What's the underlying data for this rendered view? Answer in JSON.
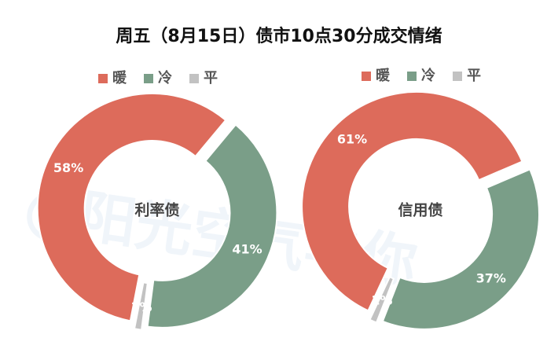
{
  "title": "周五（8月15日）债市10点30分成交情绪",
  "watermark": "@阳光空气与你",
  "chart_data": [
    {
      "type": "donut",
      "center_label": "利率债",
      "categories": [
        "暖",
        "冷",
        "平"
      ],
      "values": [
        58,
        41,
        1
      ],
      "value_labels": [
        "58%",
        "41%",
        "1%"
      ],
      "colors": [
        "#dd6b5b",
        "#7a9e88",
        "#c2c2c2"
      ]
    },
    {
      "type": "donut",
      "center_label": "信用债",
      "categories": [
        "暖",
        "冷",
        "平"
      ],
      "values": [
        61,
        37,
        1
      ],
      "value_labels": [
        "61%",
        "37%",
        "1%"
      ],
      "colors": [
        "#dd6b5b",
        "#7a9e88",
        "#c2c2c2"
      ]
    }
  ]
}
